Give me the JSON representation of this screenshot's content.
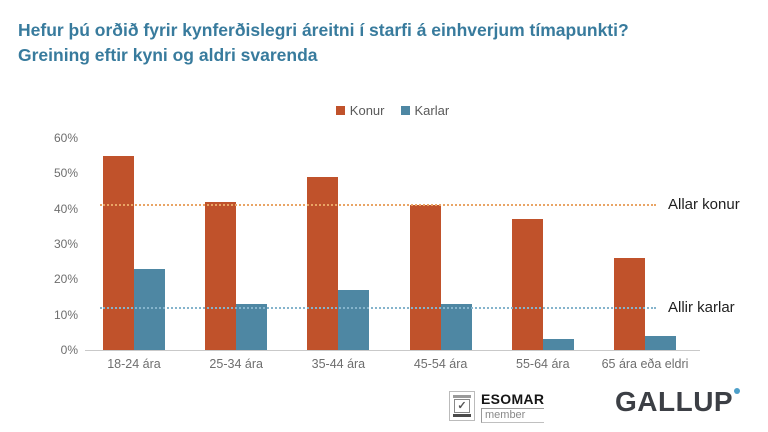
{
  "title": "Hefur þú orðið fyrir kynferðislegri áreitni í starfi á einhverjum tímapunkti? Greining eftir kyni og aldri svarenda",
  "colors": {
    "title": "#387b9d",
    "konur": "#c0522b",
    "karlar": "#4e87a3",
    "konur_ref_line": "#e9a566",
    "karlar_ref_line": "#85b4cc",
    "gallup_dot": "#4d9fc9"
  },
  "chart_data": {
    "type": "bar",
    "categories": [
      "18-24 ára",
      "25-34 ára",
      "35-44 ára",
      "45-54 ára",
      "55-64 ára",
      "65 ára eða eldri"
    ],
    "series": [
      {
        "name": "Konur",
        "color": "#c0522b",
        "values": [
          55,
          42,
          49,
          41,
          37,
          26
        ]
      },
      {
        "name": "Karlar",
        "color": "#4e87a3",
        "values": [
          23,
          13,
          17,
          13,
          3,
          4
        ]
      }
    ],
    "reference_lines": [
      {
        "label": "Allar konur",
        "value": 41,
        "color": "#e9a566",
        "style": "dotted"
      },
      {
        "label": "Allir karlar",
        "value": 12,
        "color": "#85b4cc",
        "style": "dotted"
      }
    ],
    "title": "Hefur þú orðið fyrir kynferðislegri áreitni í starfi á einhverjum tímapunkti? Greining eftir kyni og aldri svarenda",
    "xlabel": "",
    "ylabel": "",
    "ylim": [
      0,
      60
    ],
    "yticks": [
      "0%",
      "10%",
      "20%",
      "30%",
      "40%",
      "50%",
      "60%"
    ],
    "grid": false,
    "legend_position": "top-center"
  },
  "footer": {
    "esomar": {
      "name": "ESOMAR",
      "member": "member",
      "emblem": "checkbox-emblem"
    },
    "gallup": {
      "name": "GALLUP",
      "mark": "blue-dot"
    }
  }
}
